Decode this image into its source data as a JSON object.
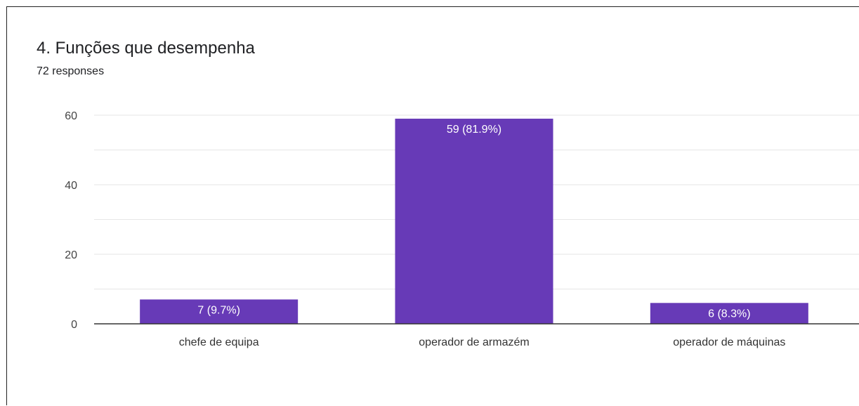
{
  "card": {
    "title": "4. Funções que desempenha",
    "responses": "72 responses"
  },
  "chart_data": {
    "type": "bar",
    "categories": [
      "chefe de equipa",
      "operador de armazém",
      "operador de máquinas"
    ],
    "values": [
      7,
      59,
      6
    ],
    "data_labels": [
      "7 (9.7%)",
      "59 (81.9%)",
      "6 (8.3%)"
    ],
    "title": "4. Funções que desempenha",
    "xlabel": "",
    "ylabel": "",
    "ylim": [
      0,
      60
    ],
    "yticks": [
      0,
      20,
      40,
      60
    ],
    "grid": true,
    "colors": {
      "bar": "#673ab7",
      "gridline": "#e6e6e6",
      "axis": "#333333",
      "tick_text": "#444444",
      "bar_label": "#ffffff"
    }
  }
}
